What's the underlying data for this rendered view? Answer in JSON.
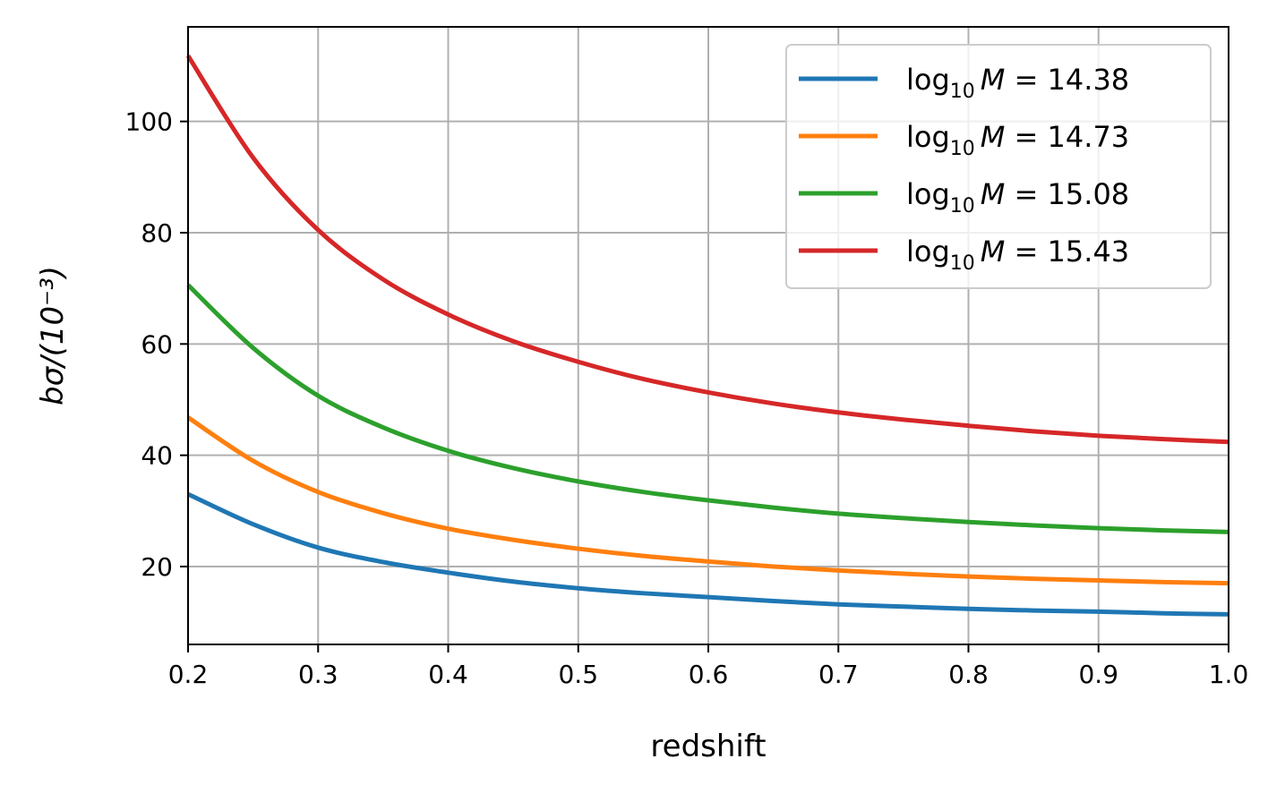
{
  "chart_data": {
    "type": "line",
    "xlabel": "redshift",
    "ylabel": "bσ/(10⁻³)",
    "xlim": [
      0.2,
      1.0
    ],
    "ylim": [
      6,
      117
    ],
    "xticks": [
      "0.2",
      "0.3",
      "0.4",
      "0.5",
      "0.6",
      "0.7",
      "0.8",
      "0.9",
      "1.0"
    ],
    "xtick_values": [
      0.2,
      0.3,
      0.4,
      0.5,
      0.6,
      0.7,
      0.8,
      0.9,
      1.0
    ],
    "yticks": [
      "20",
      "40",
      "60",
      "80",
      "100"
    ],
    "ytick_values": [
      20,
      40,
      60,
      80,
      100
    ],
    "grid": true,
    "legend_position": "top-right",
    "x": [
      0.2,
      0.25,
      0.3,
      0.35,
      0.4,
      0.45,
      0.5,
      0.55,
      0.6,
      0.65,
      0.7,
      0.75,
      0.8,
      0.85,
      0.9,
      0.95,
      1.0
    ],
    "series": [
      {
        "name": "log10 M = 14.38",
        "legend": {
          "prefix": "log",
          "sub": "10",
          "var": "M",
          "value": " = 14.38"
        },
        "color": "#1f77b4",
        "values": [
          33.0,
          27.6,
          23.4,
          20.8,
          18.9,
          17.3,
          16.1,
          15.2,
          14.5,
          13.8,
          13.2,
          12.8,
          12.4,
          12.1,
          11.9,
          11.6,
          11.4
        ]
      },
      {
        "name": "log10 M = 14.73",
        "legend": {
          "prefix": "log",
          "sub": "10",
          "var": "M",
          "value": " = 14.73"
        },
        "color": "#ff7f0e",
        "values": [
          46.8,
          39.0,
          33.4,
          29.6,
          26.8,
          24.8,
          23.2,
          21.9,
          20.9,
          20.0,
          19.3,
          18.7,
          18.2,
          17.8,
          17.5,
          17.2,
          17.0
        ]
      },
      {
        "name": "log10 M = 15.08",
        "legend": {
          "prefix": "log",
          "sub": "10",
          "var": "M",
          "value": " = 15.08"
        },
        "color": "#2ca02c",
        "values": [
          70.6,
          59.3,
          50.7,
          45.0,
          40.8,
          37.7,
          35.3,
          33.4,
          31.9,
          30.6,
          29.5,
          28.7,
          28.0,
          27.4,
          26.9,
          26.5,
          26.2
        ]
      },
      {
        "name": "log10 M = 15.43",
        "legend": {
          "prefix": "log",
          "sub": "10",
          "var": "M",
          "value": " = 15.43"
        },
        "color": "#d62728",
        "values": [
          111.8,
          93.5,
          80.5,
          71.6,
          65.3,
          60.5,
          56.8,
          53.7,
          51.3,
          49.3,
          47.7,
          46.4,
          45.3,
          44.3,
          43.5,
          42.9,
          42.4
        ]
      }
    ]
  }
}
